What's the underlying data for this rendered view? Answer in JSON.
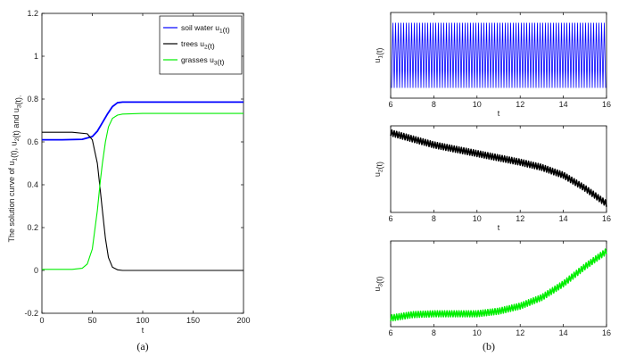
{
  "chart_data": [
    {
      "type": "line",
      "panel": "a",
      "caption": "(a)",
      "xlabel": "t",
      "ylabel": "The solution curve of u1(t), u2(t) and u3(t).",
      "xlim": [
        0,
        200
      ],
      "ylim": [
        -0.2,
        1.2
      ],
      "xticks": [
        "0",
        "50",
        "100",
        "150",
        "200"
      ],
      "yticks": [
        "-0.2",
        "0",
        "0.2",
        "0.4",
        "0.6",
        "0.8",
        "1",
        "1.2"
      ],
      "grid": false,
      "legend_position": "top-right",
      "series": [
        {
          "name": "soil water u1(t)",
          "color": "#0000ff",
          "points": [
            [
              0,
              0.61
            ],
            [
              20,
              0.61
            ],
            [
              40,
              0.612
            ],
            [
              50,
              0.625
            ],
            [
              55,
              0.65
            ],
            [
              60,
              0.69
            ],
            [
              65,
              0.73
            ],
            [
              70,
              0.765
            ],
            [
              75,
              0.783
            ],
            [
              80,
              0.786
            ],
            [
              100,
              0.786
            ],
            [
              150,
              0.786
            ],
            [
              200,
              0.786
            ]
          ]
        },
        {
          "name": "trees u2(t)",
          "color": "#000000",
          "points": [
            [
              0,
              0.645
            ],
            [
              30,
              0.645
            ],
            [
              45,
              0.638
            ],
            [
              50,
              0.61
            ],
            [
              55,
              0.5
            ],
            [
              58,
              0.37
            ],
            [
              60,
              0.28
            ],
            [
              63,
              0.15
            ],
            [
              66,
              0.06
            ],
            [
              70,
              0.015
            ],
            [
              75,
              0.003
            ],
            [
              80,
              0
            ],
            [
              200,
              0
            ]
          ]
        },
        {
          "name": "grasses u3(t)",
          "color": "#00ee00",
          "points": [
            [
              0,
              0.005
            ],
            [
              30,
              0.005
            ],
            [
              40,
              0.01
            ],
            [
              45,
              0.03
            ],
            [
              50,
              0.1
            ],
            [
              55,
              0.28
            ],
            [
              58,
              0.42
            ],
            [
              60,
              0.5
            ],
            [
              63,
              0.6
            ],
            [
              66,
              0.67
            ],
            [
              70,
              0.71
            ],
            [
              75,
              0.725
            ],
            [
              80,
              0.73
            ],
            [
              100,
              0.733
            ],
            [
              200,
              0.733
            ]
          ]
        }
      ]
    },
    {
      "type": "line",
      "panel": "b-top",
      "caption": "(b)",
      "xlabel": "t",
      "ylabel": "u1(t)",
      "xlim": [
        6,
        16
      ],
      "xticks": [
        "6",
        "8",
        "10",
        "12",
        "14",
        "16"
      ],
      "series": [
        {
          "name": "u1(t)",
          "color": "#0000ff",
          "style": "dense-oscillation",
          "center": 0.5,
          "amplitude": 0.5,
          "cycles": 80
        }
      ]
    },
    {
      "type": "line",
      "panel": "b-middle",
      "xlabel": "t",
      "ylabel": "u2(t)",
      "xlim": [
        6,
        16
      ],
      "xticks": [
        "6",
        "8",
        "10",
        "12",
        "14",
        "16"
      ],
      "series": [
        {
          "name": "u2(t)",
          "color": "#000000",
          "style": "thick-oscillating",
          "trend": [
            [
              6,
              0.92
            ],
            [
              8,
              0.78
            ],
            [
              10,
              0.68
            ],
            [
              12,
              0.58
            ],
            [
              13,
              0.52
            ],
            [
              14,
              0.43
            ],
            [
              15,
              0.28
            ],
            [
              16,
              0.1
            ]
          ]
        }
      ]
    },
    {
      "type": "line",
      "panel": "b-bottom",
      "xlabel": "t",
      "ylabel": "u3(t)",
      "xlim": [
        6,
        16
      ],
      "xticks": [
        "6",
        "8",
        "10",
        "12",
        "14",
        "16"
      ],
      "series": [
        {
          "name": "u3(t)",
          "color": "#00ee00",
          "style": "thick-oscillating",
          "trend": [
            [
              6,
              0.1
            ],
            [
              7,
              0.14
            ],
            [
              8,
              0.15
            ],
            [
              9,
              0.15
            ],
            [
              10,
              0.15
            ],
            [
              11,
              0.18
            ],
            [
              12,
              0.24
            ],
            [
              13,
              0.34
            ],
            [
              14,
              0.5
            ],
            [
              15,
              0.7
            ],
            [
              16,
              0.88
            ]
          ]
        }
      ]
    }
  ]
}
